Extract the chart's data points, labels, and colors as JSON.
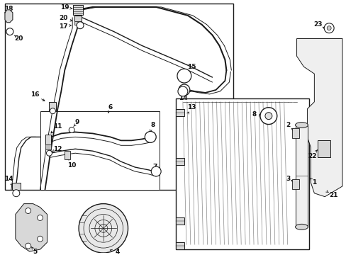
{
  "bg_color": "#ffffff",
  "figsize": [
    4.89,
    3.6
  ],
  "dpi": 100,
  "line_color": "#1a1a1a",
  "gray_fill": "#d8d8d8",
  "light_fill": "#efefef"
}
